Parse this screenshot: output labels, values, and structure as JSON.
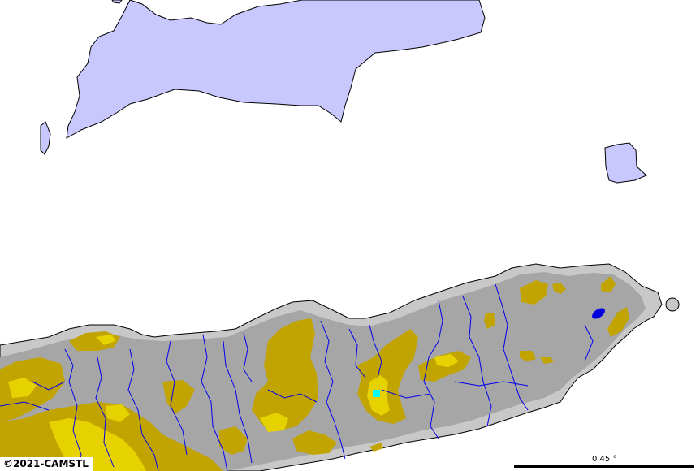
{
  "map": {
    "colors": {
      "sea_background": "#ffffff",
      "island_fill": "#c8c8ff",
      "land_low": "#c8c8c8",
      "land_mid": "#a6a6a6",
      "highland": "#c2a400",
      "peak": "#e6d200",
      "river": "#0000ee",
      "lake": "#0000dd",
      "location_marker": "#00ffff"
    }
  },
  "copyright": "©2021-CAMSTL",
  "scale": {
    "label": "0 45 °"
  }
}
